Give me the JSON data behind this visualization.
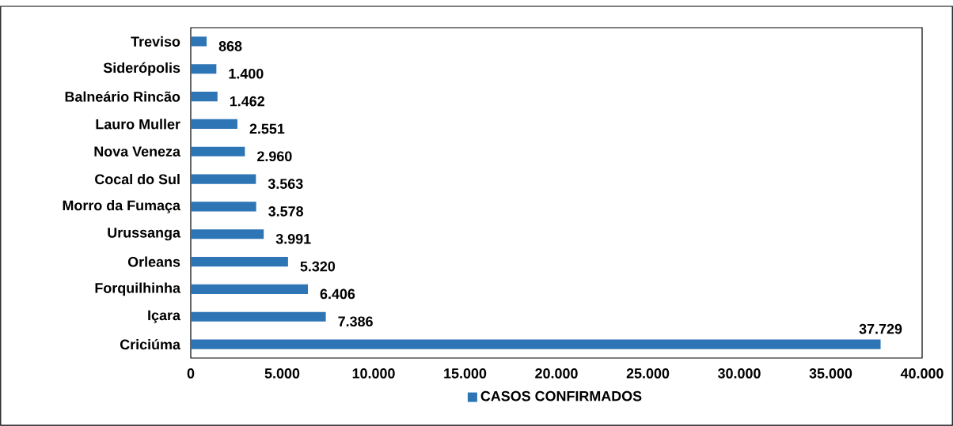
{
  "chart_data": {
    "type": "bar",
    "orientation": "horizontal",
    "categories": [
      "Treviso",
      "Siderópolis",
      "Balneário Rincão",
      "Lauro Muller",
      "Nova Veneza",
      "Cocal do Sul",
      "Morro da Fumaça",
      "Urussanga",
      "Orleans",
      "Forquilhinha",
      "Içara",
      "Criciúma"
    ],
    "series": [
      {
        "name": "CASOS CONFIRMADOS",
        "color": "#2e75b6",
        "values": [
          868,
          1400,
          1462,
          2551,
          2960,
          3563,
          3578,
          3991,
          5320,
          6406,
          7386,
          37729
        ],
        "value_labels": [
          "868",
          "1.400",
          "1.462",
          "2.551",
          "2.960",
          "3.563",
          "3.578",
          "3.991",
          "5.320",
          "6.406",
          "7.386",
          "37.729"
        ]
      }
    ],
    "xlim": [
      0,
      40000
    ],
    "xticks": [
      0,
      {
        "value": 5000,
        "label": "5.000"
      },
      {
        "value": 10000,
        "label": "10.000"
      },
      {
        "value": 15000,
        "label": "15.000"
      },
      {
        "value": 20000,
        "label": "20.000"
      },
      {
        "value": 25000,
        "label": "25.000"
      },
      {
        "value": 30000,
        "label": "30.000"
      },
      {
        "value": 35000,
        "label": "35.000"
      },
      {
        "value": 40000,
        "label": "40.000"
      }
    ],
    "legend": "bottom",
    "grid": false
  }
}
